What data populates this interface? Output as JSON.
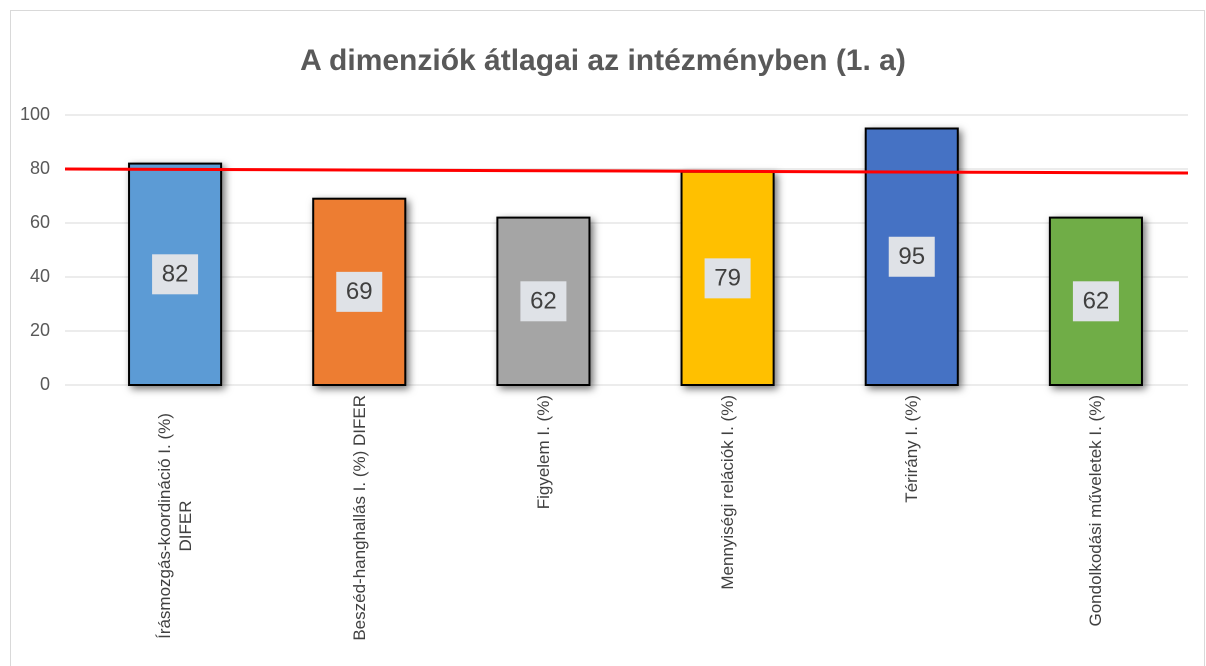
{
  "chart_data": {
    "type": "bar",
    "title": "A dimenziók átlagai az intézményben (1. a)",
    "categories": [
      "Írásmozgás-koordináció  I. (%) DIFER",
      "Beszéd-hanghallás I. (%) DIFER",
      "Figyelem I. (%)",
      "Mennyiségi relációk I. (%)",
      "Térirány I. (%)",
      "Gondolkodási műveletek I. (%)"
    ],
    "values": [
      82,
      69,
      62,
      79,
      95,
      62
    ],
    "colors": [
      "#5b9bd5",
      "#ed7d31",
      "#a5a5a5",
      "#ffc000",
      "#4472c4",
      "#70ad47"
    ],
    "ylim": [
      0,
      100
    ],
    "yticks": [
      0,
      20,
      40,
      60,
      80,
      100
    ],
    "grid": true,
    "reference_line": {
      "values": [
        80,
        78.5
      ],
      "color": "#ff0000"
    }
  }
}
